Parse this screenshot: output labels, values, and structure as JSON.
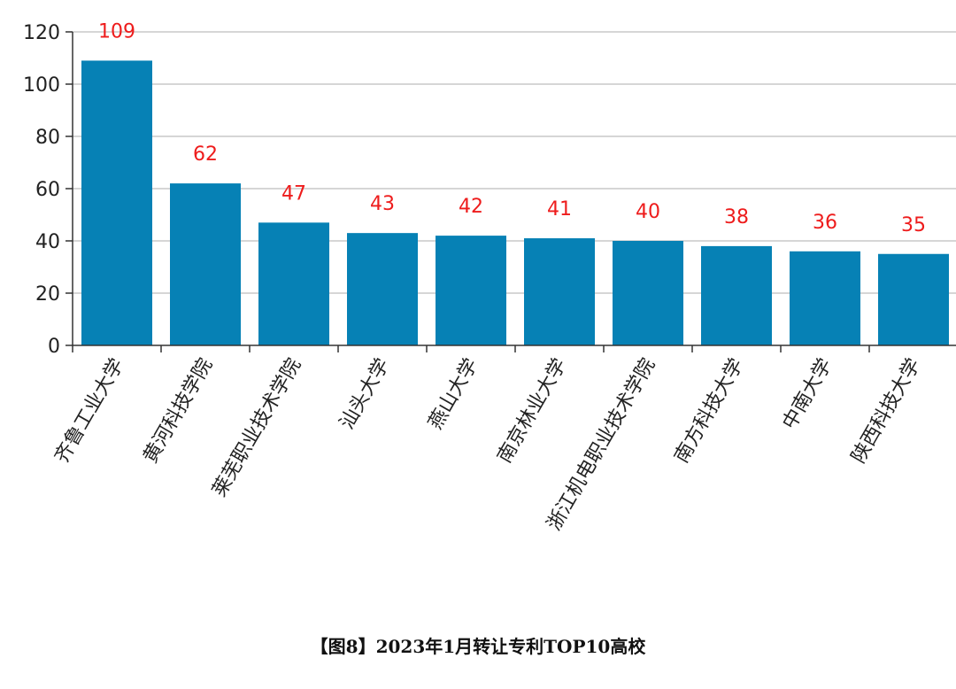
{
  "caption": "【图8】2023年1月转让专利TOP10高校",
  "colors": {
    "bar": "#0681b5",
    "data_label": "#ee1c1c",
    "grid": "#c8c8c8",
    "axis": "#333333"
  },
  "chart_data": {
    "type": "bar",
    "categories": [
      "齐鲁工业大学",
      "黄河科技学院",
      "莱芜职业技术学院",
      "汕头大学",
      "燕山大学",
      "南京林业大学",
      "浙江机电职业技术学院",
      "南方科技大学",
      "中南大学",
      "陕西科技大学"
    ],
    "values": [
      109,
      62,
      47,
      43,
      42,
      41,
      40,
      38,
      36,
      35
    ],
    "ylim": [
      0,
      120
    ],
    "yticks": [
      0,
      20,
      40,
      60,
      80,
      100,
      120
    ],
    "grid": true,
    "data_labels": true
  }
}
